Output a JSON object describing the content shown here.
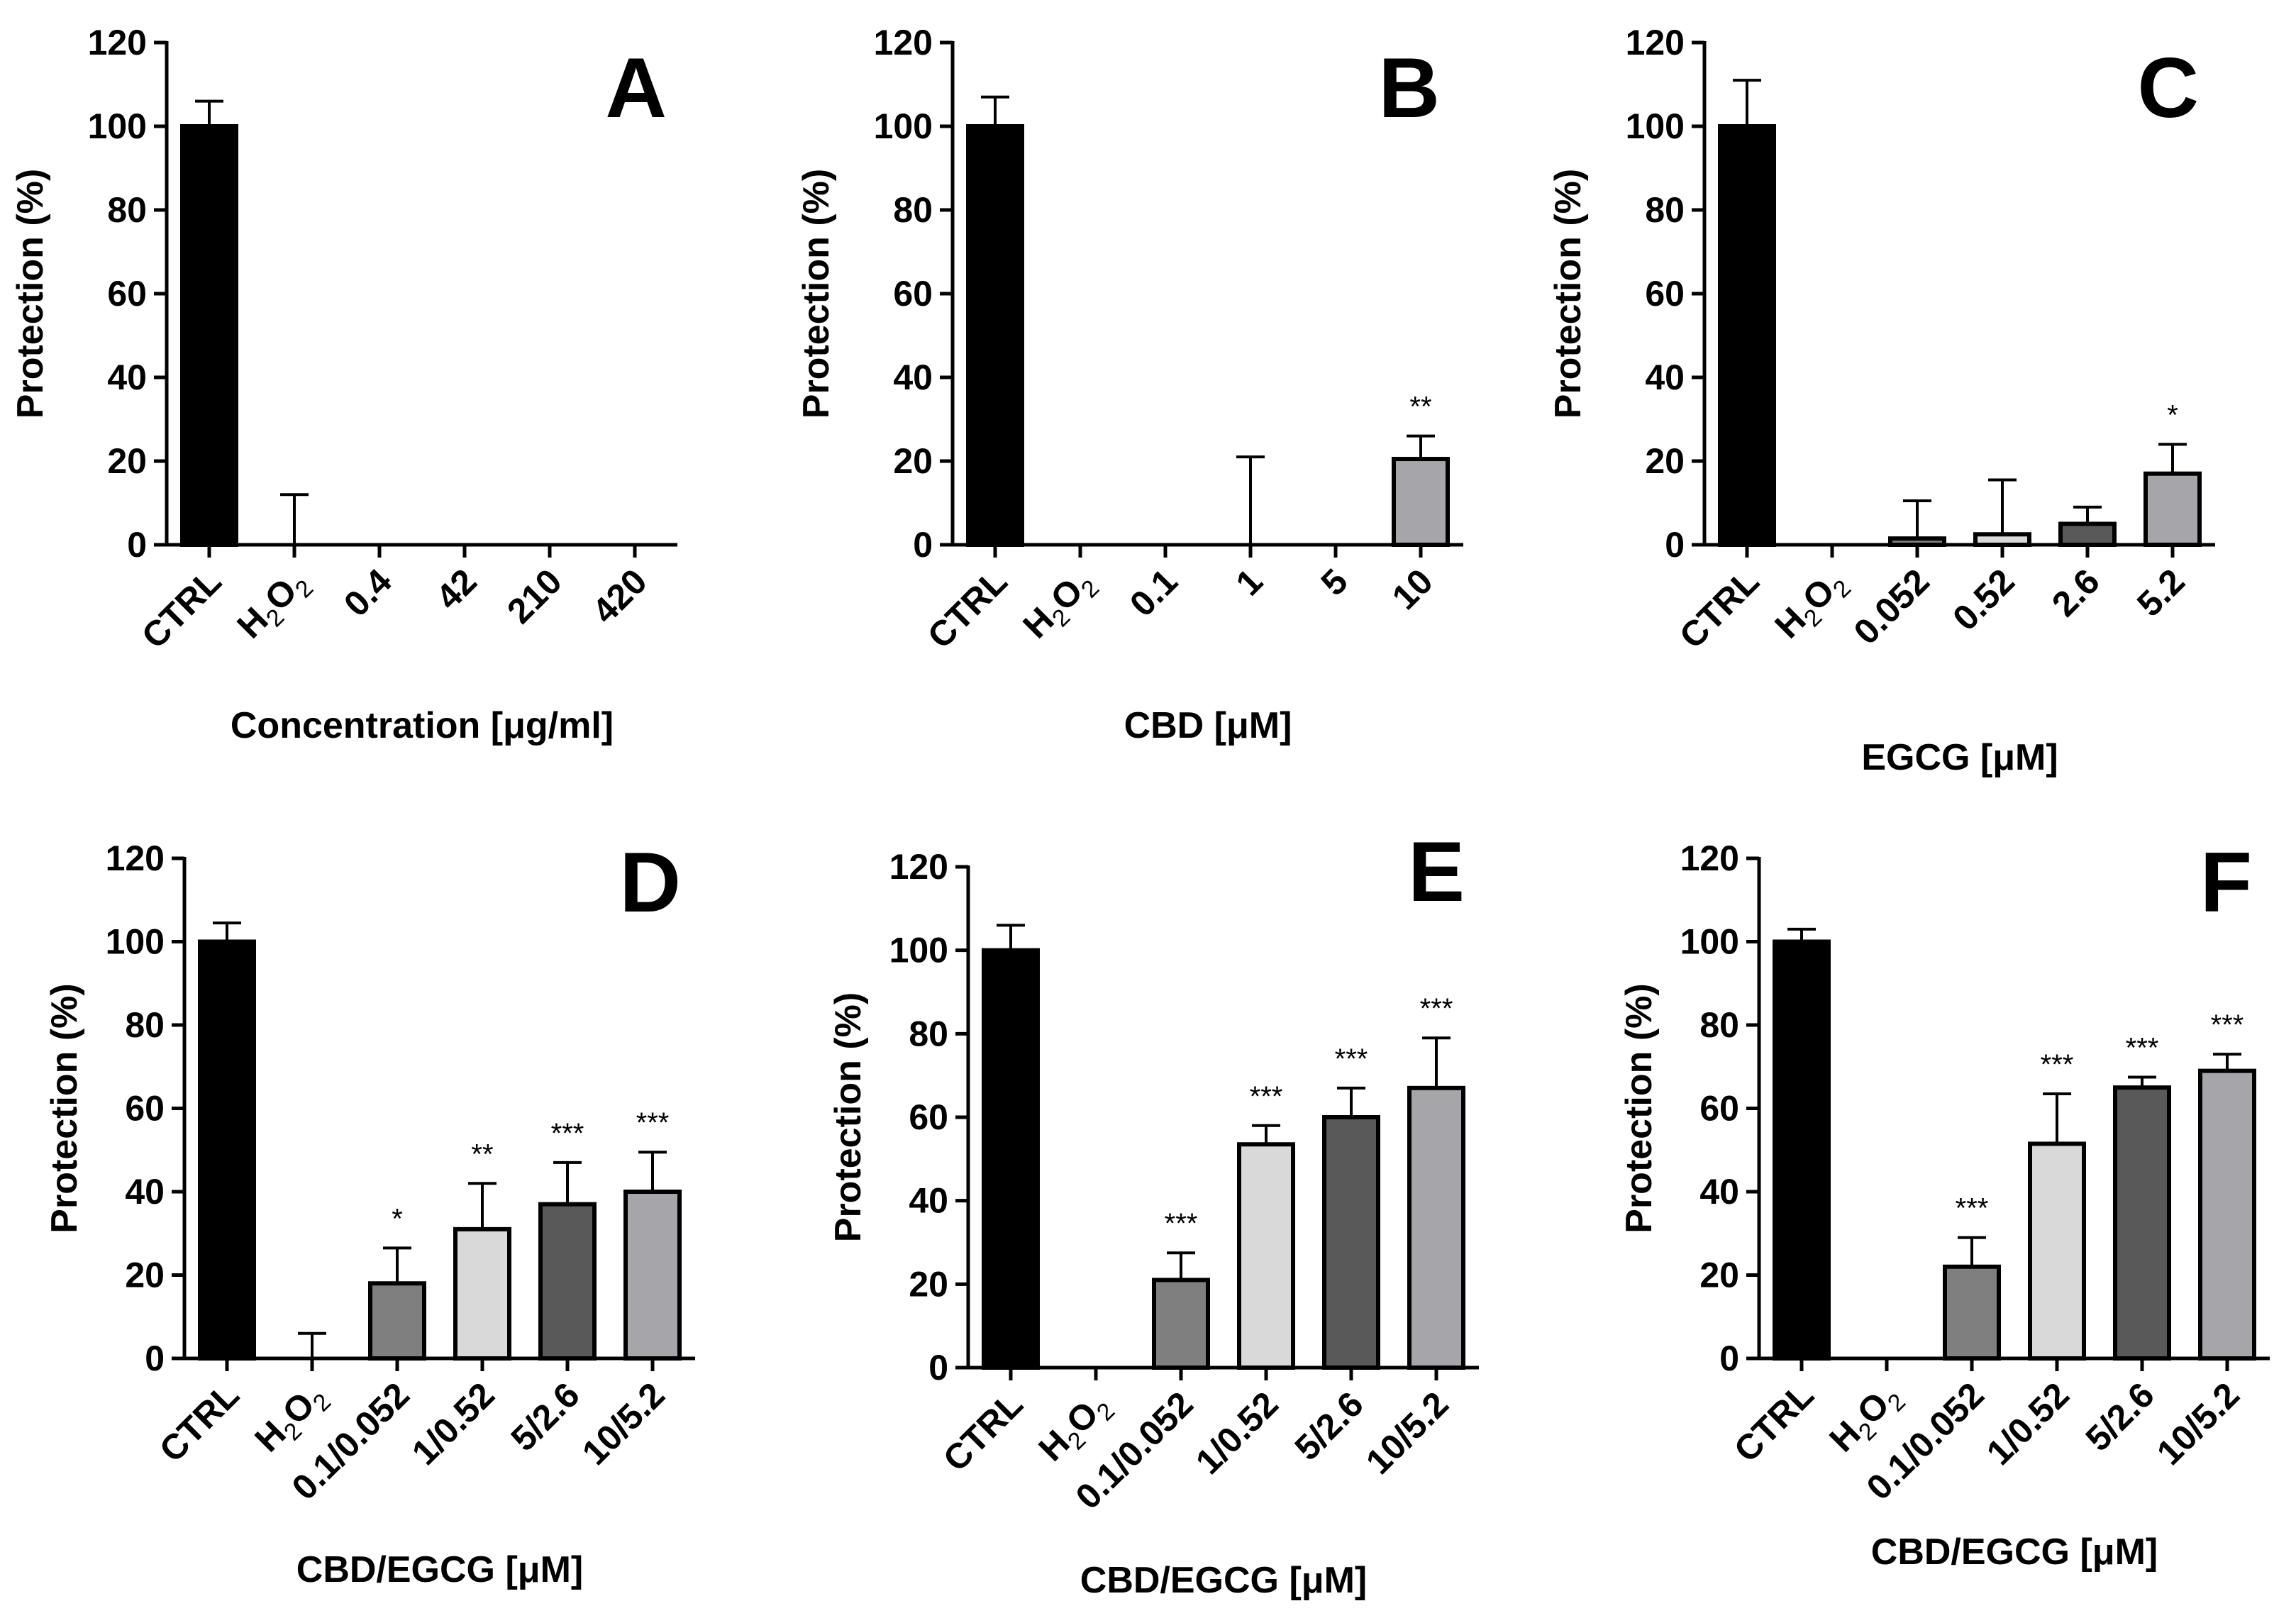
{
  "figure_description_colors": {
    "CTRL": "#000000",
    "H2O2": "#ffffff",
    "c1": "#7f7f7f",
    "c2": "#d9d9d9",
    "c3": "#595959",
    "c4": "#a6a6aa"
  },
  "chart_data": [
    {
      "panel": "A",
      "type": "bar",
      "categories": [
        "CTRL",
        "H2O2",
        "0.4",
        "42",
        "210",
        "420"
      ],
      "values": [
        100,
        0,
        0,
        0,
        0,
        0
      ],
      "errors": [
        6,
        12,
        0,
        0,
        0,
        0
      ],
      "significance": [
        "",
        "",
        "",
        "",
        "",
        ""
      ],
      "ylabel": "Protection (%)",
      "xlabel": "Concentration [μg/ml]",
      "ylim": [
        0,
        120
      ],
      "yticks": [
        0,
        20,
        40,
        60,
        80,
        100,
        120
      ]
    },
    {
      "panel": "B",
      "type": "bar",
      "categories": [
        "CTRL",
        "H2O2",
        "0.1",
        "1",
        "5",
        "10"
      ],
      "values": [
        100,
        0,
        0,
        0,
        0,
        20.5
      ],
      "errors": [
        7,
        0,
        0,
        21,
        0,
        5.5
      ],
      "significance": [
        "",
        "",
        "",
        "",
        "",
        "**"
      ],
      "ylabel": "Protection (%)",
      "xlabel": "CBD [μM]",
      "ylim": [
        0,
        120
      ],
      "yticks": [
        0,
        20,
        40,
        60,
        80,
        100,
        120
      ]
    },
    {
      "panel": "C",
      "type": "bar",
      "categories": [
        "CTRL",
        "H2O2",
        "0.052",
        "0.52",
        "2.6",
        "5.2"
      ],
      "values": [
        100,
        0,
        1.5,
        2.5,
        5,
        17
      ],
      "errors": [
        11,
        0,
        9,
        13,
        4,
        7
      ],
      "significance": [
        "",
        "",
        "",
        "",
        "",
        "*"
      ],
      "ylabel": "Protection (%)",
      "xlabel": "EGCG [μM]",
      "ylim": [
        0,
        120
      ],
      "yticks": [
        0,
        20,
        40,
        60,
        80,
        100,
        120
      ]
    },
    {
      "panel": "D",
      "type": "bar",
      "categories": [
        "CTRL",
        "H2O2",
        "0.1/0.052",
        "1/0.52",
        "5/2.6",
        "10/5.2"
      ],
      "values": [
        100,
        0,
        18,
        31,
        37,
        40
      ],
      "errors": [
        4.5,
        6,
        8.5,
        11,
        10,
        9.5
      ],
      "significance": [
        "",
        "",
        "*",
        "**",
        "***",
        "***"
      ],
      "ylabel": "Protection (%)",
      "xlabel": "CBD/EGCG [μM]",
      "ylim": [
        0,
        120
      ],
      "yticks": [
        0,
        20,
        40,
        60,
        80,
        100,
        120
      ]
    },
    {
      "panel": "E",
      "type": "bar",
      "categories": [
        "CTRL",
        "H2O2",
        "0.1/0.052",
        "1/0.52",
        "5/2.6",
        "10/5.2"
      ],
      "values": [
        100,
        0,
        21,
        53.5,
        60,
        67
      ],
      "errors": [
        6,
        0,
        6.5,
        4.5,
        7,
        12
      ],
      "significance": [
        "",
        "",
        "***",
        "***",
        "***",
        "***"
      ],
      "ylabel": "Protection (%)",
      "xlabel": "CBD/EGCG [μM]",
      "ylim": [
        0,
        120
      ],
      "yticks": [
        0,
        20,
        40,
        60,
        80,
        100,
        120
      ]
    },
    {
      "panel": "F",
      "type": "bar",
      "categories": [
        "CTRL",
        "H2O2",
        "0.1/0.052",
        "1/0.52",
        "5/2.6",
        "10/5.2"
      ],
      "values": [
        100,
        0,
        22,
        51.5,
        65,
        69
      ],
      "errors": [
        3,
        0,
        7,
        12,
        2.5,
        4
      ],
      "significance": [
        "",
        "",
        "***",
        "***",
        "***",
        "***"
      ],
      "ylabel": "Protection (%)",
      "xlabel": "CBD/EGCG [μM]",
      "ylim": [
        0,
        120
      ],
      "yticks": [
        0,
        20,
        40,
        60,
        80,
        100,
        120
      ]
    }
  ]
}
